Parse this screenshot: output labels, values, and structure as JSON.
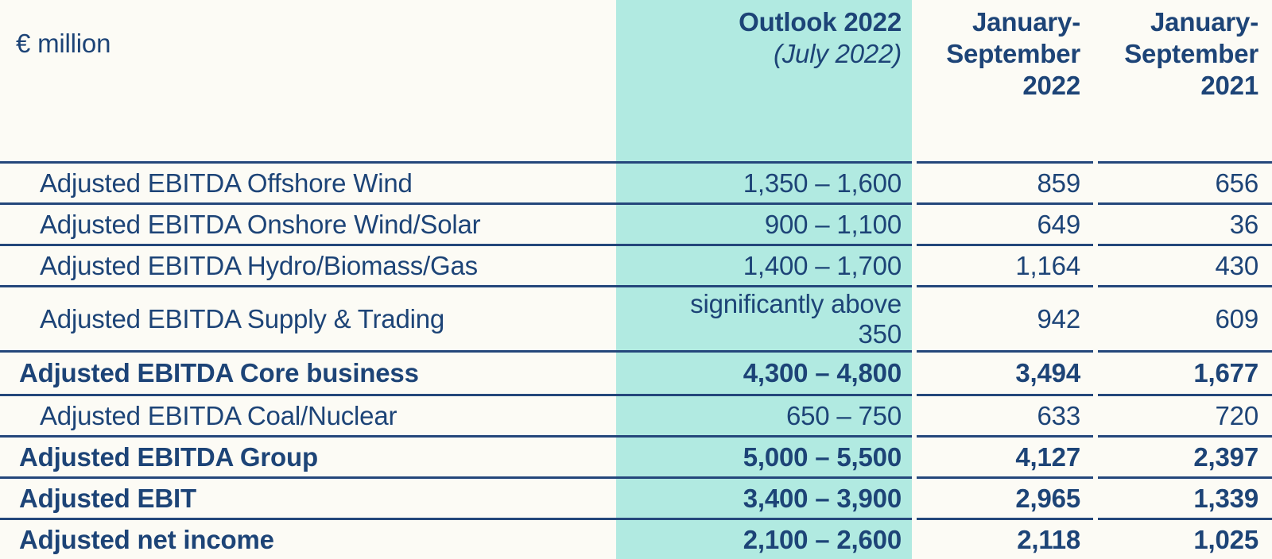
{
  "table": {
    "unit": "€ million",
    "columns": {
      "outlook": {
        "title": "Outlook 2022",
        "subtitle": "(July 2022)"
      },
      "jan_sep_2022": {
        "title": "January-\nSeptember\n2022"
      },
      "jan_sep_2021": {
        "title": "January-\nSeptember\n2021"
      }
    },
    "rows": [
      {
        "label": "Adjusted EBITDA Offshore Wind",
        "outlook": "1,350 – 1,600",
        "y2022": "859",
        "y2021": "656"
      },
      {
        "label": "Adjusted EBITDA Onshore Wind/Solar",
        "outlook": "900 – 1,100",
        "y2022": "649",
        "y2021": "36"
      },
      {
        "label": "Adjusted EBITDA Hydro/Biomass/Gas",
        "outlook": "1,400 – 1,700",
        "y2022": "1,164",
        "y2021": "430"
      },
      {
        "label": "Adjusted EBITDA Supply & Trading",
        "outlook": "significantly above\n350",
        "y2022": "942",
        "y2021": "609"
      },
      {
        "label": "Adjusted EBITDA Core business",
        "outlook": "4,300 – 4,800",
        "y2022": "3,494",
        "y2021": "1,677"
      },
      {
        "label": "Adjusted EBITDA Coal/Nuclear",
        "outlook": "650 – 750",
        "y2022": "633",
        "y2021": "720"
      },
      {
        "label": "Adjusted EBITDA Group",
        "outlook": "5,000 – 5,500",
        "y2022": "4,127",
        "y2021": "2,397"
      },
      {
        "label": "Adjusted EBIT",
        "outlook": "3,400 – 3,900",
        "y2022": "2,965",
        "y2021": "1,339"
      },
      {
        "label": "Adjusted net income",
        "outlook": "2,100 – 2,600",
        "y2022": "2,118",
        "y2021": "1,025"
      }
    ]
  },
  "colors": {
    "highlight": "#b1eae1",
    "text": "#1d4477",
    "line": "#24477b",
    "background": "#fcfbf5"
  }
}
